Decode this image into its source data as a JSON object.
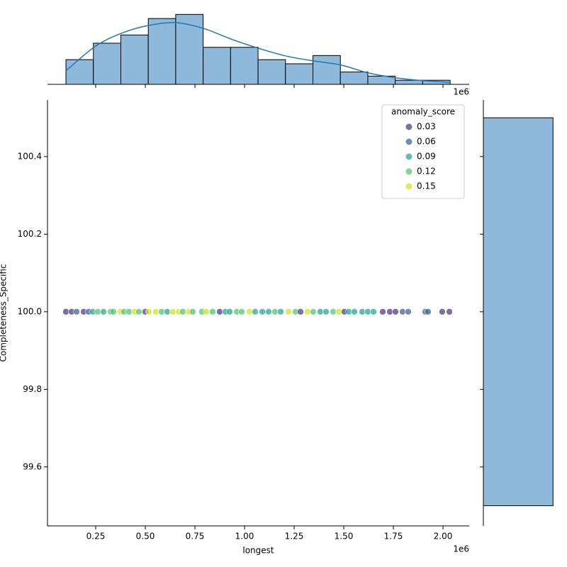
{
  "chart_data": [
    {
      "type": "scatter",
      "x_label": "longest",
      "y_label": "Completeness_Specific",
      "x_offset_label": "1e6",
      "xlim": [
        7000,
        2132000
      ],
      "ylim": [
        99.448,
        100.546
      ],
      "xticks": [
        {
          "value": 250000,
          "label": "0.25"
        },
        {
          "value": 500000,
          "label": "0.50"
        },
        {
          "value": 750000,
          "label": "0.75"
        },
        {
          "value": 1000000,
          "label": "1.00"
        },
        {
          "value": 1250000,
          "label": "1.25"
        },
        {
          "value": 1500000,
          "label": "1.50"
        },
        {
          "value": 1750000,
          "label": "1.75"
        },
        {
          "value": 2000000,
          "label": "2.00"
        }
      ],
      "yticks": [
        99.6,
        99.8,
        {
          "value": 100,
          "label": "100.0"
        },
        100.2,
        100.4
      ],
      "x": [
        100000,
        128600,
        153600,
        189300,
        214300,
        235700,
        260700,
        289300,
        325000,
        339300,
        375000,
        392900,
        417900,
        446400,
        467900,
        500000,
        517900,
        553600,
        582100,
        610700,
        639300,
        667900,
        689300,
        717900,
        739300,
        785700,
        807100,
        839300,
        875000,
        903600,
        925000,
        960700,
        985700,
        1025000,
        1053600,
        1089300,
        1121400,
        1153600,
        1182100,
        1221400,
        1257100,
        1282100,
        1317900,
        1346400,
        1382100,
        1410700,
        1446400,
        1475000,
        1503600,
        1525000,
        1553600,
        1592900,
        1621400,
        1650000,
        1696400,
        1732100,
        1760700,
        1796400,
        1825000,
        1910700,
        1925000,
        1996400,
        2032100
      ],
      "y": [
        100,
        100,
        100,
        100,
        100,
        100,
        100,
        100,
        100,
        100,
        100,
        100,
        100,
        100,
        100,
        100,
        100,
        100,
        100,
        100,
        100,
        100,
        100,
        100,
        100,
        100,
        100,
        100,
        100,
        100,
        100,
        100,
        100,
        100,
        100,
        100,
        100,
        100,
        100,
        100,
        100,
        100,
        100,
        100,
        100,
        100,
        100,
        100,
        100,
        100,
        100,
        100,
        100,
        100,
        100,
        100,
        100,
        100,
        100,
        100,
        100,
        100,
        100
      ],
      "hue": [
        0.03,
        0.03,
        0.06,
        0.03,
        0.06,
        0.09,
        0.12,
        0.09,
        0.12,
        0.12,
        0.15,
        0.12,
        0.12,
        0.15,
        0.12,
        0.03,
        0.15,
        0.15,
        0.12,
        0.09,
        0.15,
        0.15,
        0.12,
        0.15,
        0.12,
        0.12,
        0.15,
        0.12,
        0.03,
        0.09,
        0.09,
        0.12,
        0.12,
        0.15,
        0.09,
        0.09,
        0.09,
        0.12,
        0.09,
        0.15,
        0.12,
        0.03,
        0.15,
        0.12,
        0.09,
        0.09,
        0.12,
        0.15,
        0.03,
        0.09,
        0.09,
        0.09,
        0.09,
        0.09,
        0.03,
        0.03,
        0.03,
        0.06,
        0.06,
        0.06,
        0.06,
        0.03,
        0.03
      ],
      "legend": {
        "title": "anomaly_score",
        "position": "upper right",
        "levels": [
          0.03,
          0.06,
          0.09,
          0.12,
          0.15
        ],
        "colors": [
          "#46327e",
          "#365c8d",
          "#1fa187",
          "#4ac16d",
          "#d0e11c"
        ]
      }
    },
    {
      "type": "histogram",
      "orientation": "vertical",
      "x_offset_label": "1e6",
      "xlim": [
        7000,
        2132000
      ],
      "ylim": [
        0,
        20.5
      ],
      "color": "#8fb9da",
      "bins": [
        100000,
        238300,
        376600,
        514900,
        653100,
        791400,
        929700,
        1068000,
        1206300,
        1344600,
        1482900,
        1621100,
        1759400,
        1897700,
        2036000
      ],
      "counts": [
        6,
        10,
        12,
        16,
        17,
        9,
        9,
        6,
        5,
        7,
        3,
        2,
        1,
        1
      ],
      "kde_color": "#1f77b4",
      "kde_x": [
        100000,
        250000,
        378600,
        514300,
        653600,
        792900,
        932100,
        1067900,
        1207100,
        1346400,
        1485700,
        1621400,
        1760700,
        1900000,
        2035700
      ],
      "kde_y": [
        3.3,
        9.3,
        12.4,
        14.3,
        15.0,
        13.6,
        11.0,
        8.8,
        6.9,
        5.7,
        4.7,
        2.8,
        1.6,
        0.9,
        0.5
      ]
    },
    {
      "type": "histogram",
      "orientation": "horizontal",
      "xlim": [
        0,
        109
      ],
      "ylim": [
        99.448,
        100.546
      ],
      "color": "#8fb9da",
      "bins": [
        99.5,
        100.5
      ],
      "counts": [
        104
      ]
    }
  ]
}
